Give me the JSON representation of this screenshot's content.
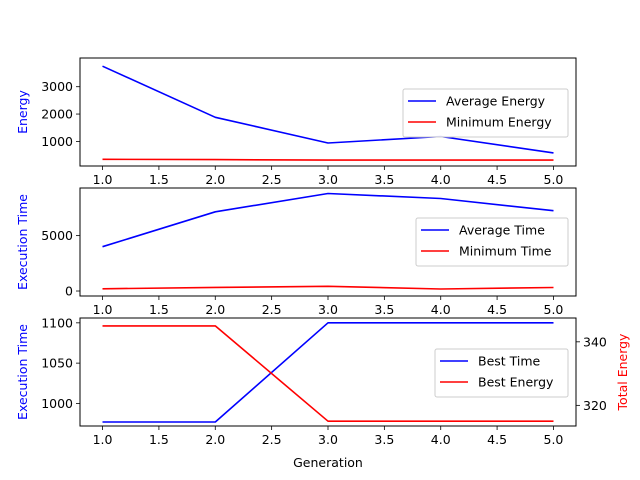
{
  "chart_data": [
    {
      "type": "line",
      "x": [
        1.0,
        2.0,
        3.0,
        4.0,
        5.0
      ],
      "xticks": [
        "1.0",
        "1.5",
        "2.0",
        "2.5",
        "3.0",
        "3.5",
        "4.0",
        "4.5",
        "5.0"
      ],
      "xlim": [
        0.8,
        5.2
      ],
      "ylabel": "Energy",
      "ylabel_color": "#0000ff",
      "ylim": [
        100,
        4050
      ],
      "yticks": [
        1000,
        2000,
        3000
      ],
      "ytick_color": "#0000ff",
      "legend_position": "center-right",
      "series": [
        {
          "name": "Average Energy",
          "color": "#0000ff",
          "axis": "left",
          "values": [
            3750,
            1880,
            940,
            1180,
            580
          ]
        },
        {
          "name": "Minimum Energy",
          "color": "#ff0000",
          "axis": "left",
          "values": [
            345,
            335,
            315,
            315,
            315
          ]
        }
      ]
    },
    {
      "type": "line",
      "x": [
        1.0,
        2.0,
        3.0,
        4.0,
        5.0
      ],
      "xticks": [
        "1.0",
        "1.5",
        "2.0",
        "2.5",
        "3.0",
        "3.5",
        "4.0",
        "4.5",
        "5.0"
      ],
      "xlim": [
        0.8,
        5.2
      ],
      "ylabel": "Execution Time",
      "ylabel_color": "#0000ff",
      "ylim": [
        -450,
        9300
      ],
      "yticks": [
        0,
        5000
      ],
      "ytick_color": "#0000ff",
      "legend_position": "center-right",
      "series": [
        {
          "name": "Average Time",
          "color": "#0000ff",
          "axis": "left",
          "values": [
            4000,
            7150,
            8800,
            8350,
            7250
          ]
        },
        {
          "name": "Minimum Time",
          "color": "#ff0000",
          "axis": "left",
          "values": [
            200,
            330,
            430,
            180,
            320
          ]
        }
      ]
    },
    {
      "type": "line",
      "x": [
        1.0,
        2.0,
        3.0,
        4.0,
        5.0
      ],
      "xticks": [
        "1.0",
        "1.5",
        "2.0",
        "2.5",
        "3.0",
        "3.5",
        "4.0",
        "4.5",
        "5.0"
      ],
      "xlim": [
        0.8,
        5.2
      ],
      "xlabel": "Generation",
      "ylabel": "Execution Time",
      "ylabel_color": "#0000ff",
      "ylim": [
        972,
        1106
      ],
      "yticks": [
        1000,
        1050,
        1100
      ],
      "ytick_color": "#0000ff",
      "ylabel_right": "Total Energy",
      "ylabel_right_color": "#ff0000",
      "ylim_right": [
        313.5,
        347.5
      ],
      "yticks_right": [
        320,
        340
      ],
      "ytick_right_color": "#ff0000",
      "legend_position": "center-right",
      "series": [
        {
          "name": "Best Time",
          "color": "#0000ff",
          "axis": "left",
          "values": [
            977,
            977,
            1100,
            1100,
            1100
          ]
        },
        {
          "name": "Best Energy",
          "color": "#ff0000",
          "axis": "right",
          "values": [
            345,
            345,
            315,
            315,
            315
          ]
        }
      ]
    }
  ]
}
